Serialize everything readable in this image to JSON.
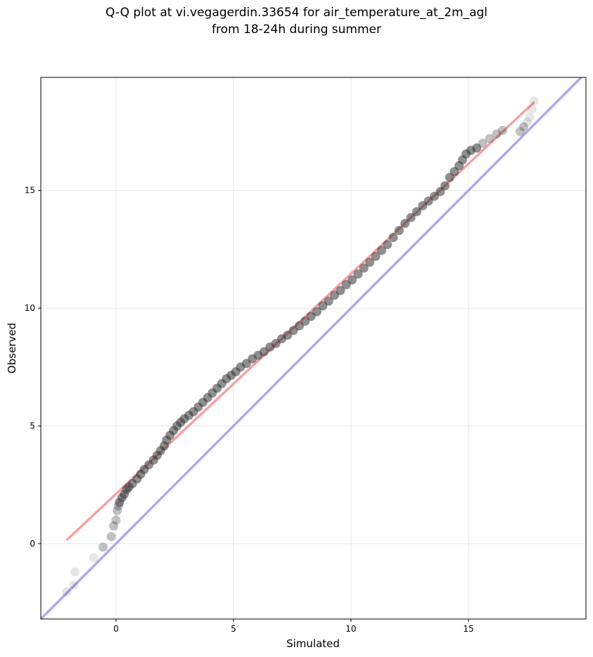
{
  "chart_data": {
    "type": "scatter",
    "title_line1": "Q-Q plot at vi.vegagerdin.33654 for air_temperature_at_2m_agl",
    "title_line2": "from 18-24h during summer",
    "xlabel": "Simulated",
    "ylabel": "Observed",
    "xlim": [
      -3.2,
      20.0
    ],
    "ylim": [
      -3.2,
      19.8
    ],
    "xticks": [
      0,
      5,
      10,
      15
    ],
    "yticks": [
      0,
      5,
      10,
      15
    ],
    "grid": true,
    "colors": {
      "points": "#333333",
      "fit_line": "#f4a3a3",
      "reference_line": "#aaaaee",
      "grid": "#e6e6e6"
    },
    "fit_line": {
      "x": [
        -2.1,
        17.8
      ],
      "y": [
        0.15,
        18.75
      ]
    },
    "reference_line": {
      "x": [
        -3.2,
        20.0
      ],
      "y": [
        -3.2,
        20.0
      ]
    },
    "points": {
      "x": [
        -2.1,
        -1.8,
        -1.75,
        -0.95,
        -0.55,
        -0.2,
        -0.1,
        0.0,
        0.05,
        0.1,
        0.15,
        0.25,
        0.35,
        0.45,
        0.55,
        0.7,
        0.9,
        1.05,
        1.2,
        1.4,
        1.6,
        1.75,
        1.9,
        2.05,
        2.15,
        2.3,
        2.45,
        2.6,
        2.75,
        2.9,
        3.1,
        3.3,
        3.5,
        3.7,
        3.9,
        4.1,
        4.3,
        4.5,
        4.7,
        4.9,
        5.1,
        5.3,
        5.55,
        5.8,
        6.05,
        6.3,
        6.55,
        6.8,
        7.05,
        7.3,
        7.55,
        7.8,
        8.05,
        8.3,
        8.55,
        8.8,
        9.05,
        9.3,
        9.55,
        9.8,
        10.05,
        10.3,
        10.55,
        10.8,
        11.05,
        11.3,
        11.55,
        11.8,
        12.05,
        12.3,
        12.55,
        12.8,
        13.05,
        13.3,
        13.55,
        13.8,
        14.0,
        14.2,
        14.4,
        14.6,
        14.75,
        14.9,
        15.1,
        15.35,
        15.6,
        15.9,
        16.2,
        16.45,
        17.2,
        17.35,
        17.5,
        17.6,
        17.7,
        17.8
      ],
      "y": [
        -2.05,
        -1.75,
        -1.2,
        -0.6,
        -0.15,
        0.3,
        0.75,
        1.0,
        1.4,
        1.6,
        1.75,
        1.95,
        2.1,
        2.3,
        2.4,
        2.55,
        2.75,
        2.95,
        3.15,
        3.35,
        3.55,
        3.75,
        3.95,
        4.15,
        4.4,
        4.6,
        4.8,
        5.0,
        5.15,
        5.3,
        5.45,
        5.6,
        5.8,
        6.0,
        6.2,
        6.4,
        6.6,
        6.8,
        7.0,
        7.15,
        7.3,
        7.5,
        7.65,
        7.85,
        8.0,
        8.15,
        8.35,
        8.5,
        8.7,
        8.85,
        9.05,
        9.25,
        9.45,
        9.65,
        9.85,
        10.1,
        10.3,
        10.55,
        10.75,
        11.0,
        11.2,
        11.45,
        11.7,
        11.95,
        12.2,
        12.45,
        12.7,
        13.0,
        13.3,
        13.6,
        13.85,
        14.1,
        14.35,
        14.55,
        14.75,
        14.95,
        15.2,
        15.55,
        15.8,
        16.05,
        16.3,
        16.55,
        16.7,
        16.8,
        17.0,
        17.2,
        17.4,
        17.55,
        17.5,
        17.7,
        17.9,
        18.1,
        18.45,
        18.8
      ]
    }
  }
}
